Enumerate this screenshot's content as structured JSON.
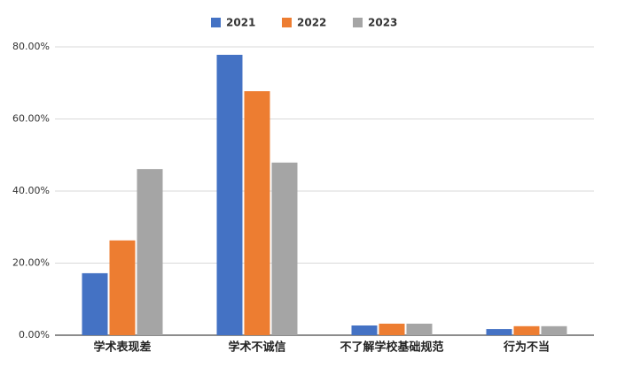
{
  "chart_data": {
    "type": "bar",
    "categories": [
      "学术表现差",
      "学术不诚信",
      "不了解学校基础规范",
      "行为不当"
    ],
    "series": [
      {
        "name": "2021",
        "color": "#4472c4",
        "values": [
          17.2,
          77.8,
          2.7,
          1.7
        ]
      },
      {
        "name": "2022",
        "color": "#ed7d31",
        "values": [
          26.3,
          67.7,
          3.2,
          2.5
        ]
      },
      {
        "name": "2023",
        "color": "#a5a5a5",
        "values": [
          46.1,
          47.9,
          3.2,
          2.5
        ]
      }
    ],
    "ylim": [
      0,
      80
    ],
    "yticks": [
      {
        "value": 0,
        "label": "0.00%"
      },
      {
        "value": 20,
        "label": "20.00%"
      },
      {
        "value": 40,
        "label": "40.00%"
      },
      {
        "value": 60,
        "label": "60.00%"
      },
      {
        "value": 80,
        "label": "80.00%"
      }
    ],
    "grid": true,
    "legend": "top"
  }
}
